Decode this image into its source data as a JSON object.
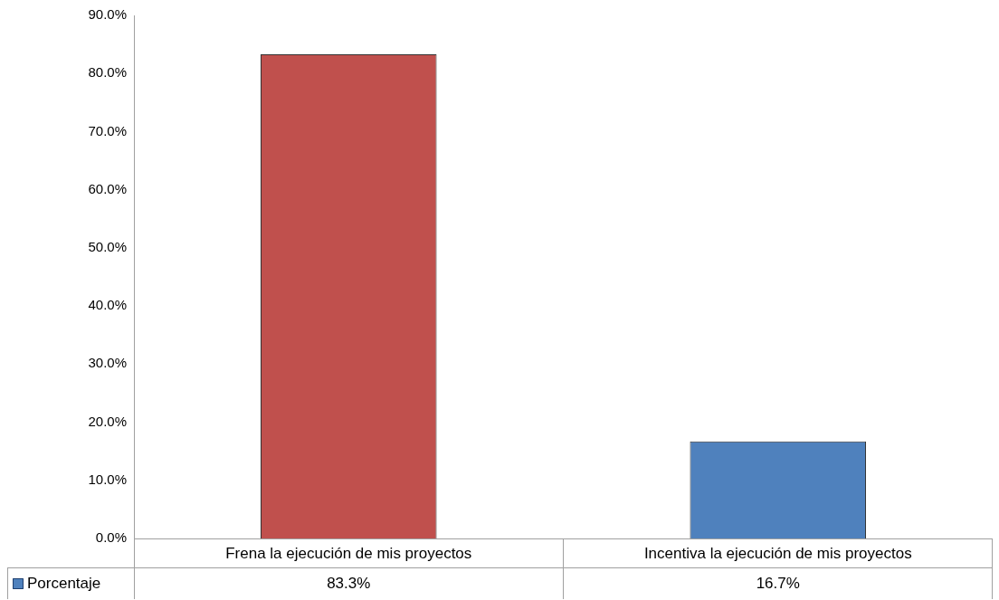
{
  "chart_data": {
    "type": "bar",
    "categories": [
      "Frena la ejecución de mis proyectos",
      "Incentiva la ejecución de mis proyectos"
    ],
    "series": [
      {
        "name": "Porcentaje",
        "color": "#4f81bd",
        "colors": [
          "#c0504d",
          "#4f81bd"
        ],
        "values": [
          83.3,
          16.7
        ],
        "value_labels": [
          "83.3%",
          "16.7%"
        ]
      }
    ],
    "ylim": [
      0,
      90
    ],
    "yticks": [
      {
        "value": 0,
        "label": "0.0%"
      },
      {
        "value": 10,
        "label": "10.0%"
      },
      {
        "value": 20,
        "label": "20.0%"
      },
      {
        "value": 30,
        "label": "30.0%"
      },
      {
        "value": 40,
        "label": "40.0%"
      },
      {
        "value": 50,
        "label": "50.0%"
      },
      {
        "value": 60,
        "label": "60.0%"
      },
      {
        "value": 70,
        "label": "70.0%"
      },
      {
        "value": 80,
        "label": "80.0%"
      },
      {
        "value": 90,
        "label": "90.0%"
      }
    ],
    "grid": false
  }
}
